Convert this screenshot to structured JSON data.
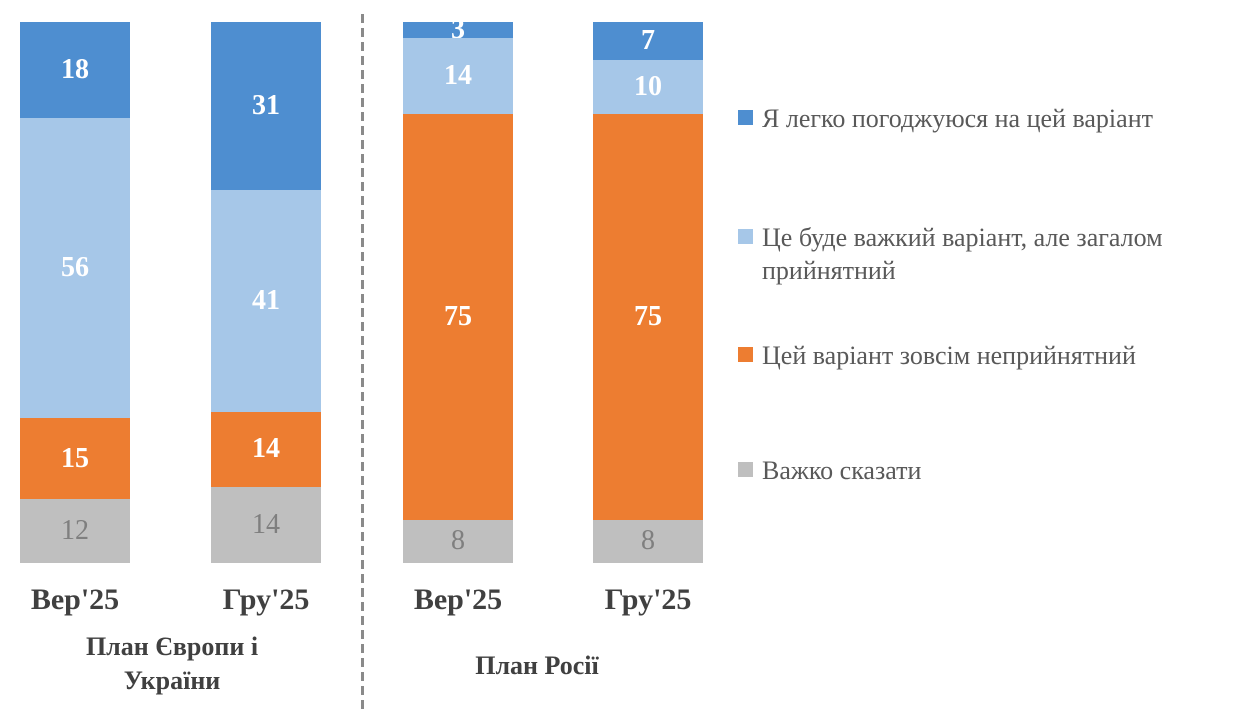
{
  "page": {
    "background": "#FFFFFF"
  },
  "chart_data": {
    "type": "bar",
    "variant": "100%-stacked-column",
    "value_unit": "percent",
    "grid": false,
    "axes_shown": false,
    "legend_position": "right",
    "groups": [
      {
        "label": "План Європи і України",
        "categories": [
          "Вер'25",
          "Гру'25"
        ]
      },
      {
        "label": "План Росії",
        "categories": [
          "Вер'25",
          "Гру'25"
        ]
      }
    ],
    "categories": [
      "Вер'25",
      "Гру'25",
      "Вер'25",
      "Гру'25"
    ],
    "series": [
      {
        "name": "Я легко погоджуюся на цей варіант",
        "color": "#4E8ED0",
        "label_color": "#FFFFFF",
        "label_bold": true,
        "values": [
          18,
          31,
          3,
          7
        ]
      },
      {
        "name": "Це буде важкий варіант, але загалом прийнятний",
        "color": "#A6C7E8",
        "label_color": "#FFFFFF",
        "label_bold": true,
        "values": [
          56,
          41,
          14,
          10
        ]
      },
      {
        "name": "Цей варіант зовсім неприйнятний",
        "color": "#ED7D31",
        "label_color": "#FFFFFF",
        "label_bold": true,
        "values": [
          15,
          14,
          75,
          75
        ]
      },
      {
        "name": "Важко сказати",
        "color": "#BFBFBF",
        "label_color": "#7F7F7F",
        "label_bold": false,
        "values": [
          12,
          14,
          8,
          8
        ]
      }
    ],
    "separator": {
      "style": "dashed-vertical",
      "color": "#8A8A8A"
    }
  },
  "text_colors": {
    "category_labels": "#404040",
    "group_labels": "#404040",
    "legend_text": "#595959"
  }
}
